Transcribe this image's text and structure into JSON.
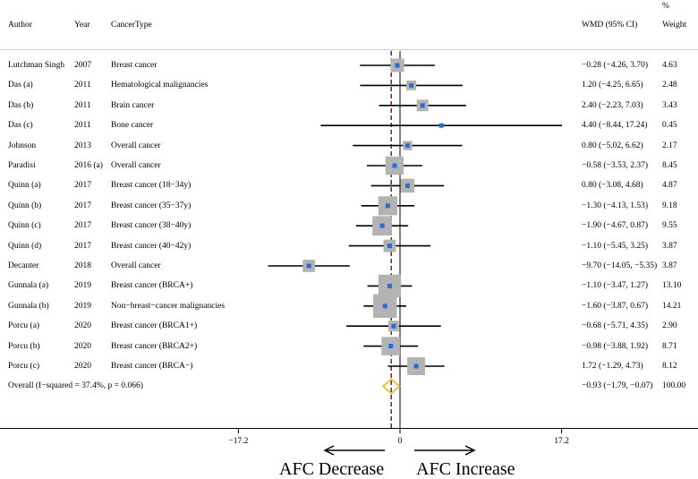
{
  "headers": {
    "author": "Author",
    "year": "Year",
    "cancer_type": "CancerType",
    "wmd": "WMD (95% CI)",
    "weight_pct": "%",
    "weight": "Weight"
  },
  "rows": [
    {
      "author": "Lutchman Singh",
      "year": "2007",
      "type": "Breast cancer",
      "ci_text": "−0.28 (−4.26, 3.70)",
      "weight": "4.63"
    },
    {
      "author": "Das (a)",
      "year": "2011",
      "type": "Hematological malignancies",
      "ci_text": "1.20 (−4.25, 6.65)",
      "weight": "2.48"
    },
    {
      "author": "Das (b)",
      "year": "2011",
      "type": "Brain cancer",
      "ci_text": "2.40 (−2.23, 7.03)",
      "weight": "3.43"
    },
    {
      "author": "Das (c)",
      "year": "2011",
      "type": "Bone cancer",
      "ci_text": "4.40 (−8.44, 17.24)",
      "weight": "0.45"
    },
    {
      "author": "Johnson",
      "year": "2013",
      "type": "Overall cancer",
      "ci_text": "0.80 (−5.02, 6.62)",
      "weight": "2.17"
    },
    {
      "author": "Paradisi",
      "year": "2016 (a)",
      "type": "Overall cancer",
      "ci_text": "−0.58 (−3.53, 2.37)",
      "weight": "8.45"
    },
    {
      "author": "Quinn (a)",
      "year": "2017",
      "type": "Breast cancer (18−34y)",
      "ci_text": "0.80 (−3.08, 4.68)",
      "weight": "4.87"
    },
    {
      "author": "Quinn (b)",
      "year": "2017",
      "type": "Breast cancer (35−37y)",
      "ci_text": "−1.30 (−4.13, 1.53)",
      "weight": "9.18"
    },
    {
      "author": "Quinn (c)",
      "year": "2017",
      "type": "Breast cancer (38−40y)",
      "ci_text": "−1.90 (−4.67, 0.87)",
      "weight": "9.55"
    },
    {
      "author": "Quinn (d)",
      "year": "2017",
      "type": "Breast cancer (40−42y)",
      "ci_text": "−1.10 (−5.45, 3.25)",
      "weight": "3.87"
    },
    {
      "author": "Decanter",
      "year": "2018",
      "type": "Overall cancer",
      "ci_text": "−9.70 (−14.05, −5.35)",
      "weight": "3.87"
    },
    {
      "author": "Gunnala (a)",
      "year": "2019",
      "type": "Breast cancer (BRCA+)",
      "ci_text": "−1.10 (−3.47, 1.27)",
      "weight": "13.10"
    },
    {
      "author": "Gunnala (b)",
      "year": "2019",
      "type": "Non−breast−cancer malignancies",
      "ci_text": "−1.60 (−3.87, 0.67)",
      "weight": "14.21"
    },
    {
      "author": "Porcu (a)",
      "year": "2020",
      "type": "Breast cancer (BRCA1+)",
      "ci_text": "−0.68 (−5.71, 4.35)",
      "weight": "2.90"
    },
    {
      "author": "Porcu (b)",
      "year": "2020",
      "type": "Breast cancer (BRCA2+)",
      "ci_text": "−0.98 (−3.88, 1.92)",
      "weight": "8.71"
    },
    {
      "author": "Porcu (c)",
      "year": "2020",
      "type": "Breast cancer (BRCA−)",
      "ci_text": "1.72 (−1.29, 4.73)",
      "weight": "8.12"
    }
  ],
  "overall": {
    "label": "Overall  (I−squared = 37.4%, p = 0.066)",
    "ci_text": "−0.93 (−1.79, −0.07)",
    "weight": "100.00"
  },
  "axis_labels": {
    "decrease": "AFC Decrease",
    "increase": "AFC Increase"
  },
  "colors": {
    "box": "#b3b3b3",
    "point": "#1f6fe0",
    "diamond": "#e8c23a",
    "overall_line": "#8b1a1a",
    "axis": "#000000",
    "header_rule": "#cccccc"
  },
  "chart_data": {
    "type": "forest",
    "title": "",
    "xlabel": "",
    "null_line": 0,
    "xlim": [
      -17.2,
      17.2
    ],
    "x_ticks": [
      -17.2,
      0,
      17.2
    ],
    "tick_labels": [
      "−17.2",
      "0",
      "17.2"
    ],
    "studies": [
      {
        "label": "Lutchman Singh",
        "wmd": -0.28,
        "lo": -4.26,
        "hi": 3.7,
        "weight": 4.63
      },
      {
        "label": "Das (a)",
        "wmd": 1.2,
        "lo": -4.25,
        "hi": 6.65,
        "weight": 2.48
      },
      {
        "label": "Das (b)",
        "wmd": 2.4,
        "lo": -2.23,
        "hi": 7.03,
        "weight": 3.43
      },
      {
        "label": "Das (c)",
        "wmd": 4.4,
        "lo": -8.44,
        "hi": 17.24,
        "weight": 0.45
      },
      {
        "label": "Johnson",
        "wmd": 0.8,
        "lo": -5.02,
        "hi": 6.62,
        "weight": 2.17
      },
      {
        "label": "Paradisi",
        "wmd": -0.58,
        "lo": -3.53,
        "hi": 2.37,
        "weight": 8.45
      },
      {
        "label": "Quinn (a)",
        "wmd": 0.8,
        "lo": -3.08,
        "hi": 4.68,
        "weight": 4.87
      },
      {
        "label": "Quinn (b)",
        "wmd": -1.3,
        "lo": -4.13,
        "hi": 1.53,
        "weight": 9.18
      },
      {
        "label": "Quinn (c)",
        "wmd": -1.9,
        "lo": -4.67,
        "hi": 0.87,
        "weight": 9.55
      },
      {
        "label": "Quinn (d)",
        "wmd": -1.1,
        "lo": -5.45,
        "hi": 3.25,
        "weight": 3.87
      },
      {
        "label": "Decanter",
        "wmd": -9.7,
        "lo": -14.05,
        "hi": -5.35,
        "weight": 3.87
      },
      {
        "label": "Gunnala (a)",
        "wmd": -1.1,
        "lo": -3.47,
        "hi": 1.27,
        "weight": 13.1
      },
      {
        "label": "Gunnala (b)",
        "wmd": -1.6,
        "lo": -3.87,
        "hi": 0.67,
        "weight": 14.21
      },
      {
        "label": "Porcu (a)",
        "wmd": -0.68,
        "lo": -5.71,
        "hi": 4.35,
        "weight": 2.9
      },
      {
        "label": "Porcu (b)",
        "wmd": -0.98,
        "lo": -3.88,
        "hi": 1.92,
        "weight": 8.71
      },
      {
        "label": "Porcu (c)",
        "wmd": 1.72,
        "lo": -1.29,
        "hi": 4.73,
        "weight": 8.12
      }
    ],
    "overall": {
      "wmd": -0.93,
      "lo": -1.79,
      "hi": -0.07,
      "weight": 100.0
    }
  }
}
